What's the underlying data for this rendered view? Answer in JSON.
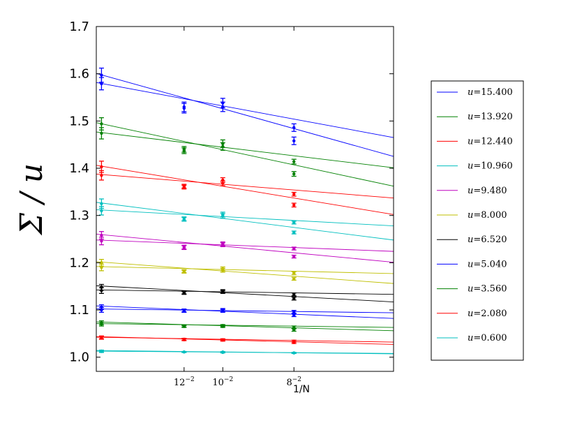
{
  "chart_data": {
    "type": "scatter",
    "title": "",
    "xlabel": "1/N",
    "ylabel": "Σ / u",
    "xlim": [
      0.0,
      0.0235
    ],
    "ylim": [
      0.97,
      1.7
    ],
    "x_ticks": [
      {
        "value": 0.00694,
        "base": "12",
        "exp": "−2"
      },
      {
        "value": 0.01,
        "base": "10",
        "exp": "−2"
      },
      {
        "value": 0.015625,
        "base": "8",
        "exp": "−2"
      }
    ],
    "y_ticks": [
      "1.0",
      "1.1",
      "1.2",
      "1.3",
      "1.4",
      "1.5",
      "1.6",
      "1.7"
    ],
    "legend_position": "right",
    "fit_x_range": [
      0.0,
      0.0235
    ],
    "series": [
      {
        "name": "u = 15.400",
        "symbol": "u",
        "value": "=15.400",
        "color": "#0000ff",
        "points_a": [
          [
            0.00041,
            1.597,
            0.015
          ],
          [
            0.00694,
            1.527,
            0.01
          ],
          [
            0.01,
            1.538,
            0.01
          ],
          [
            0.015625,
            1.486,
            0.008
          ]
        ],
        "points_b": [
          [
            0.00041,
            1.579,
            0.013
          ],
          [
            0.00694,
            1.53,
            0.01
          ],
          [
            0.01,
            1.53,
            0.01
          ],
          [
            0.015625,
            1.458,
            0.008
          ]
        ],
        "fit_a": [
          1.6008,
          1.425
        ],
        "fit_b": [
          1.5815,
          1.465
        ]
      },
      {
        "name": "u = 13.920",
        "symbol": "u",
        "value": "=13.920",
        "color": "#008000",
        "points_a": [
          [
            0.00041,
            1.494,
            0.013
          ],
          [
            0.00694,
            1.44,
            0.006
          ],
          [
            0.01,
            1.452,
            0.008
          ],
          [
            0.015625,
            1.414,
            0.005
          ]
        ],
        "points_b": [
          [
            0.00041,
            1.474,
            0.012
          ],
          [
            0.00694,
            1.437,
            0.006
          ],
          [
            0.01,
            1.446,
            0.008
          ],
          [
            0.015625,
            1.388,
            0.005
          ]
        ],
        "fit_a": [
          1.4966,
          1.362
        ],
        "fit_b": [
          1.4768,
          1.401
        ]
      },
      {
        "name": "u = 12.440",
        "symbol": "u",
        "value": "=12.440",
        "color": "#ff0000",
        "points_a": [
          [
            0.00041,
            1.403,
            0.012
          ],
          [
            0.00694,
            1.362,
            0.004
          ],
          [
            0.01,
            1.375,
            0.005
          ],
          [
            0.015625,
            1.345,
            0.004
          ]
        ],
        "points_b": [
          [
            0.00041,
            1.385,
            0.01
          ],
          [
            0.00694,
            1.36,
            0.004
          ],
          [
            0.01,
            1.368,
            0.005
          ],
          [
            0.015625,
            1.322,
            0.004
          ]
        ],
        "fit_a": [
          1.4062,
          1.302
        ],
        "fit_b": [
          1.3876,
          1.337
        ]
      },
      {
        "name": "u = 10.960",
        "symbol": "u",
        "value": "=10.960",
        "color": "#00bfbf",
        "points_a": [
          [
            0.00041,
            1.325,
            0.01
          ],
          [
            0.00694,
            1.292,
            0.004
          ],
          [
            0.01,
            1.302,
            0.005
          ],
          [
            0.015625,
            1.285,
            0.003
          ]
        ],
        "points_b": [
          [
            0.00041,
            1.31,
            0.009
          ],
          [
            0.00694,
            1.293,
            0.004
          ],
          [
            0.01,
            1.299,
            0.005
          ],
          [
            0.015625,
            1.264,
            0.003
          ]
        ],
        "fit_a": [
          1.3278,
          1.248
        ],
        "fit_b": [
          1.3122,
          1.278
        ]
      },
      {
        "name": "u = 9.480",
        "symbol": "u",
        "value": "=9.480",
        "color": "#bf00bf",
        "points_a": [
          [
            0.00041,
            1.258,
            0.008
          ],
          [
            0.00694,
            1.232,
            0.004
          ],
          [
            0.01,
            1.24,
            0.004
          ],
          [
            0.015625,
            1.23,
            0.003
          ]
        ],
        "points_b": [
          [
            0.00041,
            1.246,
            0.008
          ],
          [
            0.00694,
            1.233,
            0.004
          ],
          [
            0.01,
            1.238,
            0.004
          ],
          [
            0.015625,
            1.213,
            0.003
          ]
        ],
        "fit_a": [
          1.2605,
          1.201
        ],
        "fit_b": [
          1.2481,
          1.224
        ]
      },
      {
        "name": "u = 8.000",
        "symbol": "u",
        "value": "=8.000",
        "color": "#bfbf00",
        "points_a": [
          [
            0.00041,
            1.2,
            0.007
          ],
          [
            0.00694,
            1.182,
            0.003
          ],
          [
            0.01,
            1.187,
            0.004
          ],
          [
            0.015625,
            1.178,
            0.003
          ]
        ],
        "points_b": [
          [
            0.00041,
            1.19,
            0.007
          ],
          [
            0.00694,
            1.181,
            0.003
          ],
          [
            0.01,
            1.184,
            0.004
          ],
          [
            0.015625,
            1.166,
            0.003
          ]
        ],
        "fit_a": [
          1.2021,
          1.156
        ],
        "fit_b": [
          1.1919,
          1.177
        ]
      },
      {
        "name": "u = 6.520",
        "symbol": "u",
        "value": "=6.520",
        "color": "#000000",
        "points_a": [
          [
            0.00041,
            1.148,
            0.006
          ],
          [
            0.00694,
            1.137,
            0.003
          ],
          [
            0.01,
            1.14,
            0.003
          ],
          [
            0.015625,
            1.133,
            0.003
          ]
        ],
        "points_b": [
          [
            0.00041,
            1.141,
            0.006
          ],
          [
            0.00694,
            1.136,
            0.003
          ],
          [
            0.01,
            1.138,
            0.003
          ],
          [
            0.015625,
            1.124,
            0.003
          ]
        ],
        "fit_a": [
          1.1512,
          1.117
        ],
        "fit_b": [
          1.1425,
          1.133
        ]
      },
      {
        "name": "u = 5.040",
        "symbol": "u",
        "value": "=5.040",
        "color": "#0000ff",
        "points_a": [
          [
            0.00041,
            1.106,
            0.005
          ],
          [
            0.00694,
            1.099,
            0.003
          ],
          [
            0.01,
            1.1,
            0.003
          ],
          [
            0.015625,
            1.096,
            0.003
          ]
        ],
        "points_b": [
          [
            0.00041,
            1.1,
            0.005
          ],
          [
            0.00694,
            1.098,
            0.003
          ],
          [
            0.01,
            1.098,
            0.003
          ],
          [
            0.015625,
            1.089,
            0.003
          ]
        ],
        "fit_a": [
          1.1086,
          1.082
        ],
        "fit_b": [
          1.1021,
          1.094
        ]
      },
      {
        "name": "u = 3.560",
        "symbol": "u",
        "value": "=3.560",
        "color": "#008000",
        "points_a": [
          [
            0.00041,
            1.073,
            0.004
          ],
          [
            0.00694,
            1.066,
            0.002
          ],
          [
            0.01,
            1.067,
            0.002
          ],
          [
            0.015625,
            1.063,
            0.003
          ]
        ],
        "points_b": [
          [
            0.00041,
            1.07,
            0.004
          ],
          [
            0.00694,
            1.065,
            0.002
          ],
          [
            0.01,
            1.065,
            0.002
          ],
          [
            0.015625,
            1.058,
            0.003
          ]
        ],
        "fit_a": [
          1.0746,
          1.056
        ],
        "fit_b": [
          1.0712,
          1.063
        ]
      },
      {
        "name": "u = 2.080",
        "symbol": "u",
        "value": "=2.080",
        "color": "#ff0000",
        "points_a": [
          [
            0.00041,
            1.042,
            0.003
          ],
          [
            0.00694,
            1.038,
            0.002
          ],
          [
            0.01,
            1.037,
            0.002
          ],
          [
            0.015625,
            1.034,
            0.002
          ]
        ],
        "points_b": [
          [
            0.00041,
            1.041,
            0.003
          ],
          [
            0.00694,
            1.037,
            0.002
          ],
          [
            0.01,
            1.036,
            0.002
          ],
          [
            0.015625,
            1.031,
            0.002
          ]
        ],
        "fit_a": [
          1.0436,
          1.027
        ],
        "fit_b": [
          1.0423,
          1.032
        ]
      },
      {
        "name": "u = 0.600",
        "symbol": "u",
        "value": "=0.600",
        "color": "#00bfbf",
        "points_a": [
          [
            0.00041,
            1.013,
            0.002
          ],
          [
            0.00694,
            1.011,
            0.001
          ],
          [
            0.01,
            1.011,
            0.001
          ],
          [
            0.015625,
            1.009,
            0.001
          ]
        ],
        "points_b": [
          [
            0.00041,
            1.012,
            0.002
          ],
          [
            0.00694,
            1.011,
            0.001
          ],
          [
            0.01,
            1.01,
            0.001
          ],
          [
            0.015625,
            1.009,
            0.001
          ]
        ],
        "fit_a": [
          1.0142,
          1.007
        ],
        "fit_b": [
          1.0128,
          1.008
        ]
      }
    ]
  }
}
